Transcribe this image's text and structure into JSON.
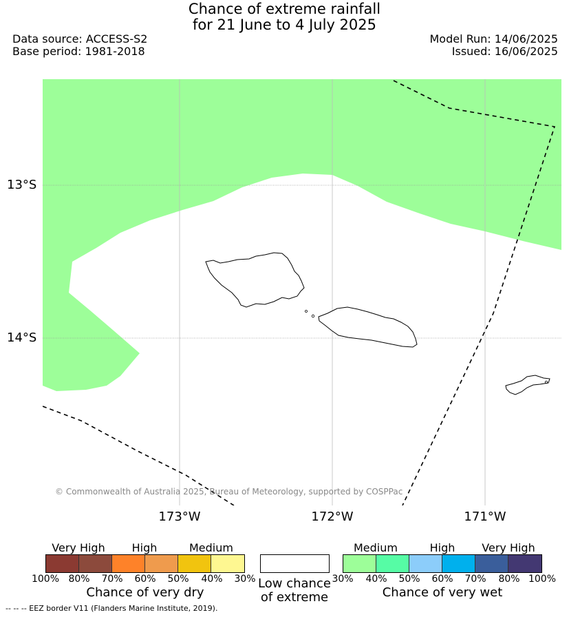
{
  "title_line1": "Chance of extreme rainfall",
  "title_line2": "for 21 June to 4 July 2025",
  "data_source": "Data source: ACCESS-S2",
  "base_period": "Base period: 1981-2018",
  "model_run": "Model Run: 14/06/2025",
  "issued": "Issued: 16/06/2025",
  "lat_labels": [
    "13°S",
    "14°S"
  ],
  "lon_labels": [
    "173°W",
    "172°W",
    "171°W"
  ],
  "credit": "© Commonwealth of Australia 2025, Bureau of Meteorology, supported by COSPPac",
  "legend_dry": {
    "headings": [
      "Very High",
      "High",
      "Medium"
    ],
    "colors": [
      "#8b3a32",
      "#8c4a3c",
      "#fe8229",
      "#ef9b4d",
      "#f1c40f",
      "#fef791"
    ],
    "ticks": [
      "100%",
      "80%",
      "70%",
      "60%",
      "50%",
      "40%",
      "30%"
    ],
    "title": "Chance of very dry"
  },
  "legend_low": {
    "line1": "Low chance",
    "line2": "of extreme"
  },
  "legend_wet": {
    "headings": [
      "Medium",
      "High",
      "Very High"
    ],
    "colors": [
      "#9dfe99",
      "#56fca5",
      "#8ccdfa",
      "#00b0ed",
      "#3a5e9b",
      "#433872"
    ],
    "ticks": [
      "30%",
      "40%",
      "50%",
      "60%",
      "70%",
      "80%",
      "100%"
    ],
    "title": "Chance of very wet"
  },
  "eez_note": "--  --  -- EEZ border V11 (Flanders Marine Institute, 2019).",
  "colors": {
    "wet_medium_fill": "#9dfe99",
    "coast": "#000000",
    "gridline": "#999999"
  }
}
